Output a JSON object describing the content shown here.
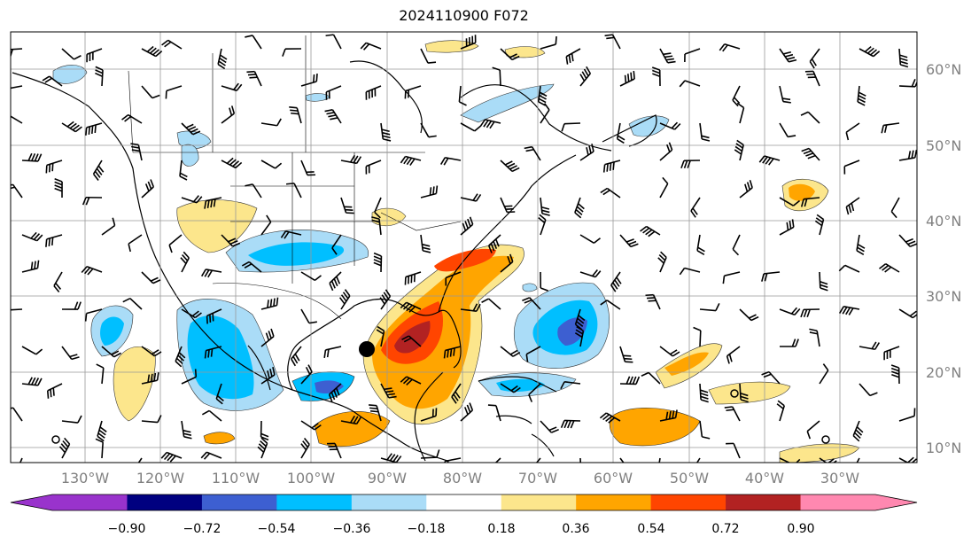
{
  "title": "2024110900 F072",
  "lon_labels": [
    "130°W",
    "120°W",
    "110°W",
    "100°W",
    "90°W",
    "80°W",
    "70°W",
    "60°W",
    "50°W",
    "40°W",
    "30°W"
  ],
  "lat_labels": [
    "60°N",
    "50°N",
    "40°N",
    "30°N",
    "20°N",
    "10°N"
  ],
  "colorbar": {
    "tick_labels": [
      "−0.90",
      "−0.72",
      "−0.54",
      "−0.36",
      "−0.18",
      "0.18",
      "0.36",
      "0.54",
      "0.72",
      "0.90"
    ],
    "colors": [
      "#9933cc",
      "#000080",
      "#3d5fd1",
      "#00bfff",
      "#aadcf7",
      "#ffffff",
      "#fce68c",
      "#ffa500",
      "#ff4500",
      "#b22222",
      "#ff88b0"
    ]
  },
  "marker": {
    "lon": -92.5,
    "lat": 22.8
  },
  "icons": {
    "marker": "filled-black-circle"
  }
}
